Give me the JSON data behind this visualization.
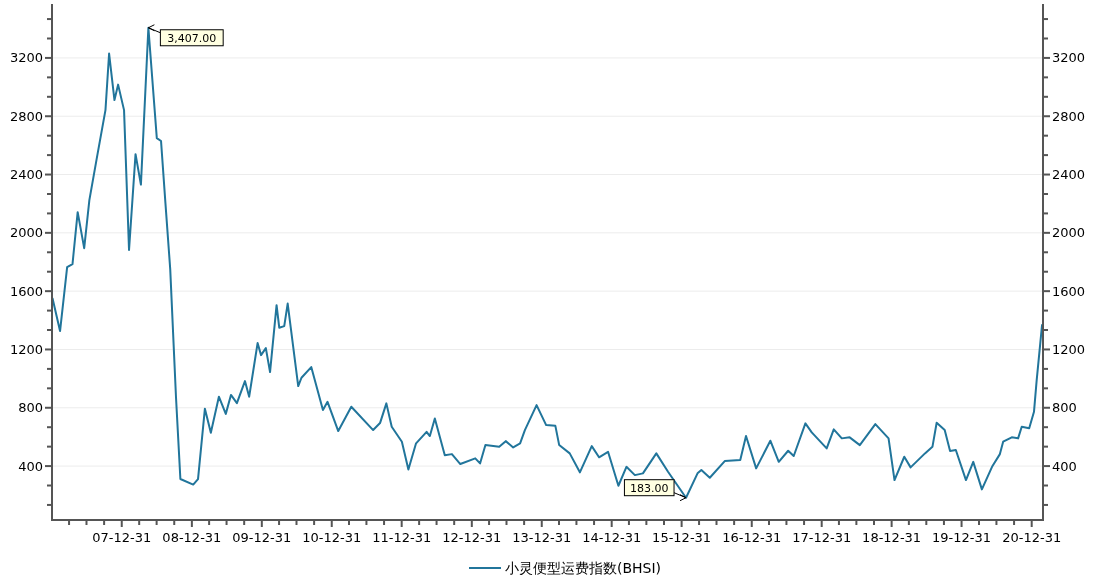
{
  "chart_data": {
    "type": "line",
    "x": [
      "2007-01-04",
      "2007-02-12",
      "2007-03-21",
      "2007-04-18",
      "2007-05-15",
      "2007-06-18",
      "2007-07-15",
      "2007-08-21",
      "2007-10-07",
      "2007-10-26",
      "2007-11-23",
      "2007-12-12",
      "2008-01-12",
      "2008-02-07",
      "2008-03-12",
      "2008-04-09",
      "2008-05-18",
      "2008-07-01",
      "2008-07-23",
      "2008-08-15",
      "2008-09-09",
      "2008-10-09",
      "2008-11-01",
      "2009-01-07",
      "2009-02-01",
      "2009-03-09",
      "2009-04-09",
      "2009-05-21",
      "2009-06-26",
      "2009-07-23",
      "2009-08-23",
      "2009-10-04",
      "2009-10-26",
      "2009-12-09",
      "2009-12-27",
      "2010-01-21",
      "2010-02-12",
      "2010-03-18",
      "2010-04-01",
      "2010-04-27",
      "2010-05-15",
      "2010-07-09",
      "2010-07-26",
      "2010-09-15",
      "2010-11-15",
      "2010-12-09",
      "2011-02-03",
      "2011-04-12",
      "2011-08-04",
      "2011-09-09",
      "2011-10-12",
      "2011-11-09",
      "2012-01-01",
      "2012-02-04",
      "2012-03-15",
      "2012-05-09",
      "2012-05-26",
      "2012-06-21",
      "2012-08-12",
      "2012-09-18",
      "2012-11-01",
      "2013-01-18",
      "2013-02-12",
      "2013-03-12",
      "2013-05-23",
      "2013-06-26",
      "2013-08-04",
      "2013-09-09",
      "2013-10-04",
      "2013-12-04",
      "2014-01-23",
      "2014-03-12",
      "2014-04-01",
      "2014-05-26",
      "2014-07-18",
      "2014-09-18",
      "2014-10-26",
      "2014-12-12",
      "2015-02-04",
      "2015-03-18",
      "2015-05-01",
      "2015-06-12",
      "2015-08-21",
      "2015-10-21",
      "2016-01-23",
      "2016-03-23",
      "2016-04-12",
      "2016-05-26",
      "2016-08-12",
      "2016-11-01",
      "2016-12-01",
      "2017-01-23",
      "2017-04-07",
      "2017-05-21",
      "2017-07-09",
      "2017-08-07",
      "2017-10-07",
      "2017-11-09",
      "2018-01-26",
      "2018-03-04",
      "2018-04-15",
      "2018-05-26",
      "2018-07-18",
      "2018-10-07",
      "2018-12-15",
      "2019-01-15",
      "2019-03-07",
      "2019-04-09",
      "2019-06-23",
      "2019-08-01",
      "2019-08-23",
      "2019-10-04",
      "2019-11-01",
      "2019-12-01",
      "2020-01-23",
      "2020-03-01",
      "2020-04-15",
      "2020-06-07",
      "2020-07-18",
      "2020-08-04",
      "2020-09-18",
      "2020-10-21",
      "2020-11-09",
      "2020-12-18",
      "2021-01-12",
      "2021-01-26",
      "2021-02-23"
    ],
    "series": [
      {
        "name": "小灵便型运费指数(BHSI)",
        "color": "#21759b",
        "values": [
          1550,
          1326,
          1765,
          1786,
          2142,
          1895,
          2225,
          2499,
          2842,
          3230,
          2911,
          3017,
          2842,
          1882,
          2540,
          2331,
          3407,
          2650,
          2630,
          2204,
          1751,
          876,
          311,
          273,
          311,
          794,
          628,
          876,
          758,
          888,
          832,
          983,
          876,
          1244,
          1161,
          1209,
          1045,
          1504,
          1349,
          1360,
          1515,
          949,
          1006,
          1079,
          784,
          841,
          640,
          807,
          647,
          695,
          830,
          670,
          567,
          377,
          556,
          635,
          606,
          727,
          475,
          482,
          414,
          453,
          418,
          544,
          532,
          571,
          528,
          556,
          647,
          818,
          681,
          676,
          544,
          487,
          357,
          537,
          460,
          498,
          265,
          395,
          338,
          350,
          487,
          361,
          183,
          350,
          373,
          320,
          434,
          441,
          606,
          384,
          574,
          429,
          505,
          469,
          693,
          631,
          521,
          652,
          590,
          597,
          544,
          688,
          590,
          304,
          464,
          391,
          487,
          532,
          697,
          647,
          503,
          510,
          304,
          429,
          240,
          395,
          482,
          567,
          597,
          590,
          670,
          659,
          772,
          990,
          1367
        ]
      }
    ],
    "xlim": [
      "2007-01-01",
      "2021-02-28"
    ],
    "xticks": [
      {
        "value": "2007-03-31",
        "label": null
      },
      {
        "value": "2007-06-30",
        "label": null
      },
      {
        "value": "2007-09-30",
        "label": null
      },
      {
        "value": "2007-12-31",
        "label": "07-12-31"
      },
      {
        "value": "2008-03-31",
        "label": null
      },
      {
        "value": "2008-06-30",
        "label": null
      },
      {
        "value": "2008-09-30",
        "label": null
      },
      {
        "value": "2008-12-31",
        "label": "08-12-31"
      },
      {
        "value": "2009-03-31",
        "label": null
      },
      {
        "value": "2009-06-30",
        "label": null
      },
      {
        "value": "2009-09-30",
        "label": null
      },
      {
        "value": "2009-12-31",
        "label": "09-12-31"
      },
      {
        "value": "2010-03-31",
        "label": null
      },
      {
        "value": "2010-06-30",
        "label": null
      },
      {
        "value": "2010-09-30",
        "label": null
      },
      {
        "value": "2010-12-31",
        "label": "10-12-31"
      },
      {
        "value": "2011-03-31",
        "label": null
      },
      {
        "value": "2011-06-30",
        "label": null
      },
      {
        "value": "2011-09-30",
        "label": null
      },
      {
        "value": "2011-12-31",
        "label": "11-12-31"
      },
      {
        "value": "2012-03-31",
        "label": null
      },
      {
        "value": "2012-06-30",
        "label": null
      },
      {
        "value": "2012-09-30",
        "label": null
      },
      {
        "value": "2012-12-31",
        "label": "12-12-31"
      },
      {
        "value": "2013-03-31",
        "label": null
      },
      {
        "value": "2013-06-30",
        "label": null
      },
      {
        "value": "2013-09-30",
        "label": null
      },
      {
        "value": "2013-12-31",
        "label": "13-12-31"
      },
      {
        "value": "2014-03-31",
        "label": null
      },
      {
        "value": "2014-06-30",
        "label": null
      },
      {
        "value": "2014-09-30",
        "label": null
      },
      {
        "value": "2014-12-31",
        "label": "14-12-31"
      },
      {
        "value": "2015-03-31",
        "label": null
      },
      {
        "value": "2015-06-30",
        "label": null
      },
      {
        "value": "2015-09-30",
        "label": null
      },
      {
        "value": "2015-12-31",
        "label": "15-12-31"
      },
      {
        "value": "2016-03-31",
        "label": null
      },
      {
        "value": "2016-06-30",
        "label": null
      },
      {
        "value": "2016-09-30",
        "label": null
      },
      {
        "value": "2016-12-31",
        "label": "16-12-31"
      },
      {
        "value": "2017-03-31",
        "label": null
      },
      {
        "value": "2017-06-30",
        "label": null
      },
      {
        "value": "2017-09-30",
        "label": null
      },
      {
        "value": "2017-12-31",
        "label": "17-12-31"
      },
      {
        "value": "2018-03-31",
        "label": null
      },
      {
        "value": "2018-06-30",
        "label": null
      },
      {
        "value": "2018-09-30",
        "label": null
      },
      {
        "value": "2018-12-31",
        "label": "18-12-31"
      },
      {
        "value": "2019-03-31",
        "label": null
      },
      {
        "value": "2019-06-30",
        "label": null
      },
      {
        "value": "2019-09-30",
        "label": null
      },
      {
        "value": "2019-12-31",
        "label": "19-12-31"
      },
      {
        "value": "2020-03-31",
        "label": null
      },
      {
        "value": "2020-06-30",
        "label": null
      },
      {
        "value": "2020-09-30",
        "label": null
      },
      {
        "value": "2020-12-31",
        "label": "20-12-31"
      }
    ],
    "ylim": [
      30,
      3570
    ],
    "yticks": [
      {
        "value": 133.33,
        "label": null
      },
      {
        "value": 266.67,
        "label": null
      },
      400,
      {
        "value": 533.33,
        "label": null
      },
      {
        "value": 666.67,
        "label": null
      },
      800,
      {
        "value": 933.33,
        "label": null
      },
      {
        "value": 1066.67,
        "label": null
      },
      1200,
      {
        "value": 1333.33,
        "label": null
      },
      {
        "value": 1466.67,
        "label": null
      },
      1600,
      {
        "value": 1733.33,
        "label": null
      },
      {
        "value": 1866.67,
        "label": null
      },
      2000,
      {
        "value": 2133.33,
        "label": null
      },
      {
        "value": 2266.67,
        "label": null
      },
      2400,
      {
        "value": 2533.33,
        "label": null
      },
      {
        "value": 2666.67,
        "label": null
      },
      2800,
      {
        "value": 2933.33,
        "label": null
      },
      {
        "value": 3066.67,
        "label": null
      },
      3200,
      {
        "value": 3333.33,
        "label": null
      },
      {
        "value": 3466.67,
        "label": null
      }
    ],
    "y2lim": [
      30,
      3570
    ],
    "y2ticks": [
      {
        "value": 133.33,
        "label": null
      },
      {
        "value": 266.67,
        "label": null
      },
      400,
      {
        "value": 533.33,
        "label": null
      },
      {
        "value": 666.67,
        "label": null
      },
      800,
      {
        "value": 933.33,
        "label": null
      },
      {
        "value": 1066.67,
        "label": null
      },
      1200,
      {
        "value": 1333.33,
        "label": null
      },
      {
        "value": 1466.67,
        "label": null
      },
      1600,
      {
        "value": 1733.33,
        "label": null
      },
      {
        "value": 1866.67,
        "label": null
      },
      2000,
      {
        "value": 2133.33,
        "label": null
      },
      {
        "value": 2266.67,
        "label": null
      },
      2400,
      {
        "value": 2533.33,
        "label": null
      },
      {
        "value": 2666.67,
        "label": null
      },
      2800,
      {
        "value": 2933.33,
        "label": null
      },
      {
        "value": 3066.67,
        "label": null
      },
      3200,
      {
        "value": 3333.33,
        "label": null
      },
      {
        "value": 3466.67,
        "label": null
      }
    ],
    "annotations": [
      {
        "text": "3,407.00",
        "x": "2008-05-18",
        "y": 3407
      },
      {
        "text": "183.00",
        "x": "2016-01-23",
        "y": 183
      }
    ],
    "grid": "y",
    "legend": "bottom"
  }
}
